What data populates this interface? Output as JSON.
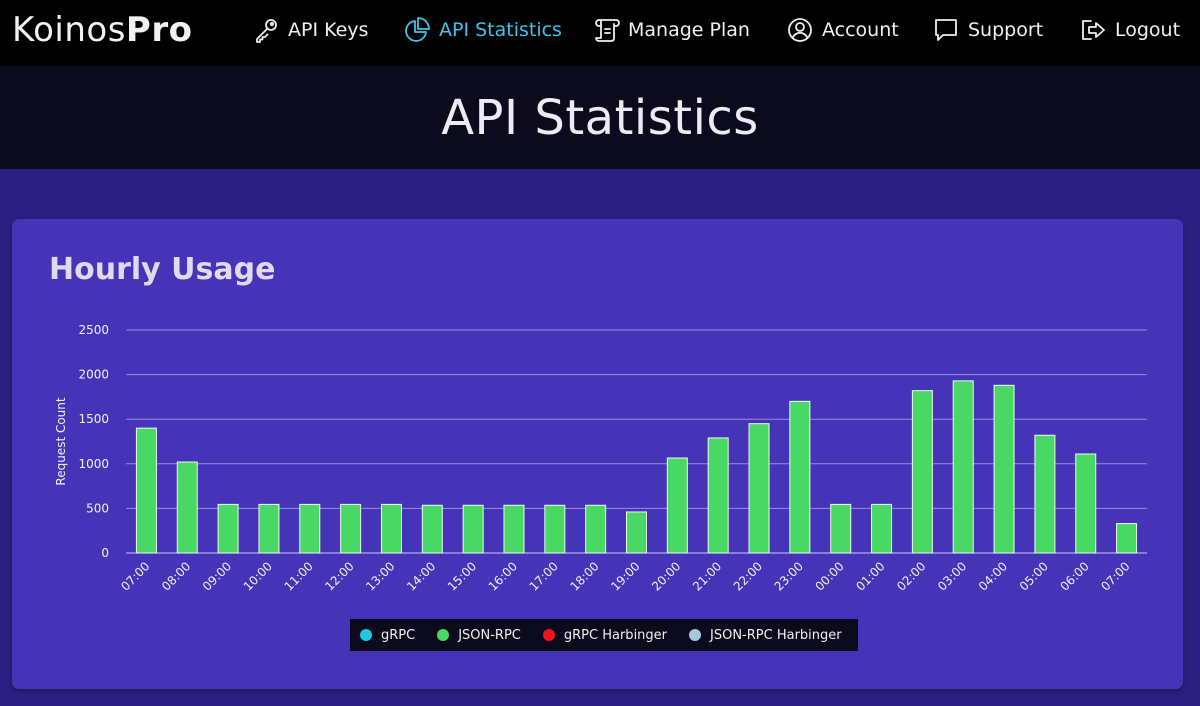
{
  "brand": {
    "name": "Koinos",
    "suffix": "Pro"
  },
  "nav": {
    "items": [
      {
        "label": "API Keys",
        "icon": "key-icon",
        "active": false
      },
      {
        "label": "API Statistics",
        "icon": "pie-chart-icon",
        "active": true
      },
      {
        "label": "Manage Plan",
        "icon": "scroll-icon",
        "active": false
      },
      {
        "label": "Account",
        "icon": "user-circle-icon",
        "active": false
      },
      {
        "label": "Support",
        "icon": "chat-bubble-icon",
        "active": false
      },
      {
        "label": "Logout",
        "icon": "logout-icon",
        "active": false
      }
    ]
  },
  "page": {
    "title": "API Statistics"
  },
  "card": {
    "title": "Hourly Usage"
  },
  "colors": {
    "nav_active": "#3fc4ee",
    "card_bg": "#4533b8",
    "page_bg": "#2d1f82",
    "bar": "#4ad865",
    "grid": "#9a8ce0"
  },
  "chart_data": {
    "type": "bar",
    "ylabel": "Request Count",
    "ylim": [
      0,
      2500
    ],
    "yticks": [
      0,
      500,
      1000,
      1500,
      2000,
      2500
    ],
    "grid": true,
    "legend_position": "bottom",
    "categories": [
      "07:00",
      "08:00",
      "09:00",
      "10:00",
      "11:00",
      "12:00",
      "13:00",
      "14:00",
      "15:00",
      "16:00",
      "17:00",
      "18:00",
      "19:00",
      "20:00",
      "21:00",
      "22:00",
      "23:00",
      "00:00",
      "01:00",
      "02:00",
      "03:00",
      "04:00",
      "05:00",
      "06:00",
      "07:00"
    ],
    "series": [
      {
        "name": "gRPC",
        "color": "#1ec8e0",
        "values": [
          0,
          0,
          0,
          0,
          0,
          0,
          0,
          0,
          0,
          0,
          0,
          0,
          0,
          0,
          0,
          0,
          0,
          0,
          0,
          0,
          0,
          0,
          0,
          0,
          0
        ]
      },
      {
        "name": "JSON-RPC",
        "color": "#4ad865",
        "values": [
          1400,
          1020,
          545,
          545,
          545,
          545,
          545,
          535,
          535,
          535,
          535,
          535,
          460,
          1065,
          1290,
          1450,
          1700,
          545,
          545,
          1820,
          1930,
          1880,
          1320,
          1110,
          330
        ]
      },
      {
        "name": "gRPC Harbinger",
        "color": "#f0141e",
        "values": [
          0,
          0,
          0,
          0,
          0,
          0,
          0,
          0,
          0,
          0,
          0,
          0,
          0,
          0,
          0,
          0,
          0,
          0,
          0,
          0,
          0,
          0,
          0,
          0,
          0
        ]
      },
      {
        "name": "JSON-RPC Harbinger",
        "color": "#a9c6d8",
        "values": [
          0,
          0,
          0,
          0,
          0,
          0,
          0,
          0,
          0,
          0,
          0,
          0,
          0,
          0,
          0,
          0,
          0,
          0,
          0,
          0,
          0,
          0,
          0,
          0,
          0
        ]
      }
    ]
  }
}
